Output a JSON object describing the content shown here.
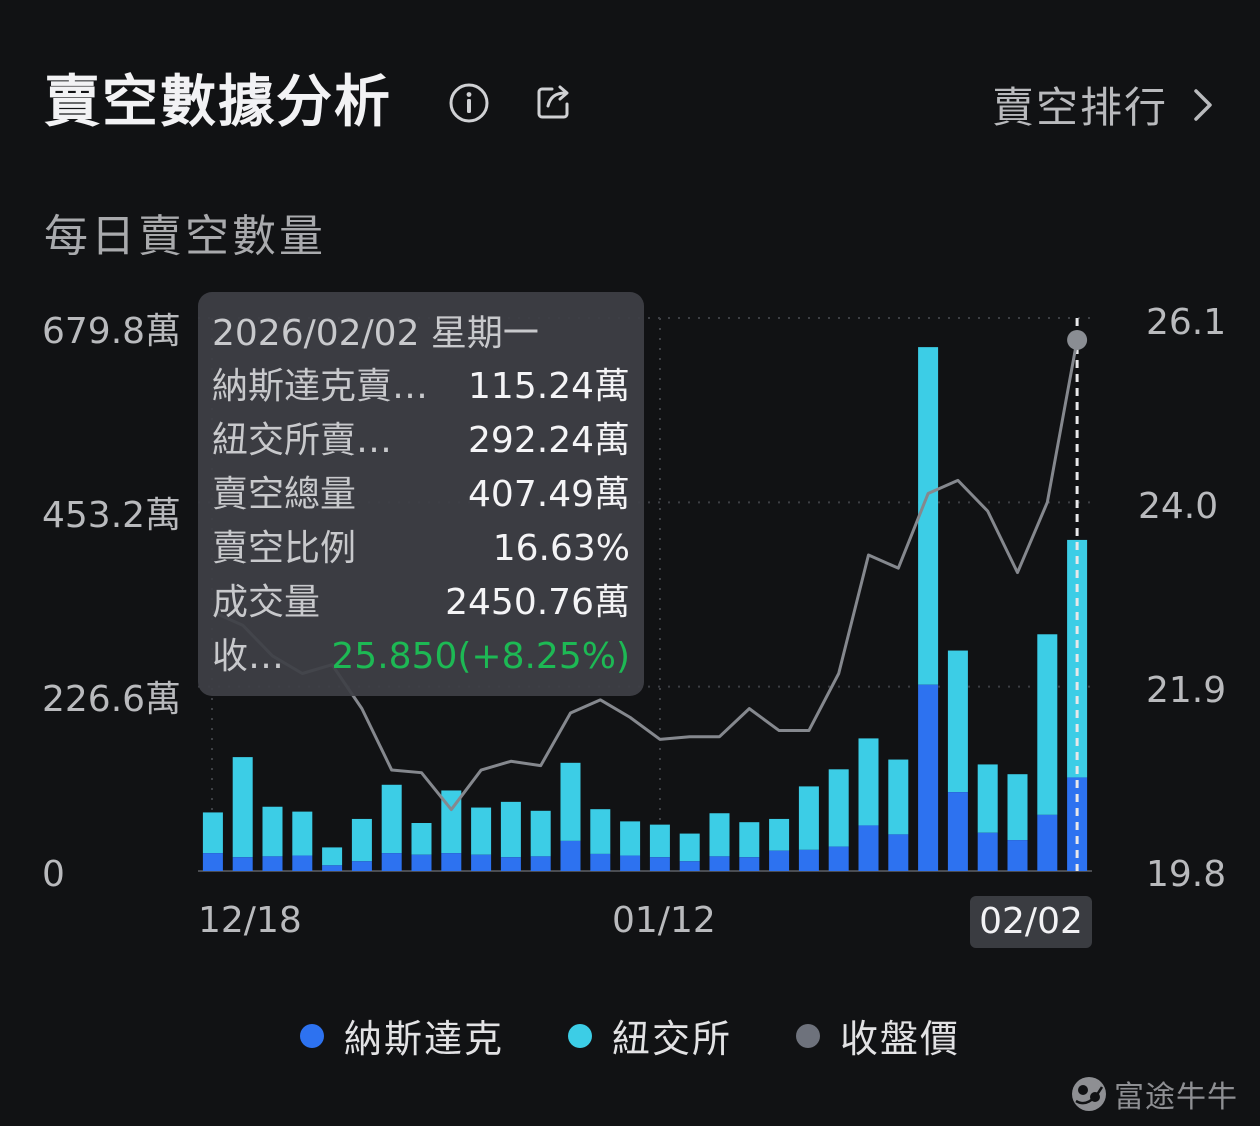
{
  "header": {
    "title": "賣空數據分析",
    "rank_label": "賣空排行"
  },
  "subtitle": "每日賣空數量",
  "tooltip": {
    "date": "2026/02/02 星期一",
    "rows": [
      {
        "label": "納斯達克賣…",
        "value": "115.24萬"
      },
      {
        "label": "紐交所賣…",
        "value": "292.24萬"
      },
      {
        "label": "賣空總量",
        "value": "407.49萬"
      },
      {
        "label": "賣空比例",
        "value": "16.63%"
      },
      {
        "label": "成交量",
        "value": "2450.76萬"
      },
      {
        "label": "收…",
        "value": "25.850(+8.25%)"
      }
    ]
  },
  "legend": [
    {
      "label": "納斯達克",
      "color": "#2d72f0"
    },
    {
      "label": "紐交所",
      "color": "#3ccde6"
    },
    {
      "label": "收盤價",
      "color": "#6e727c"
    }
  ],
  "watermark": "富途牛牛",
  "colors": {
    "nasdaq": "#2d72f0",
    "nyse": "#3ccde6",
    "close": "#85888e",
    "up": "#1db954"
  },
  "chart_data": {
    "type": "bar",
    "stacked": true,
    "y_left": {
      "ticks": [
        "679.8萬",
        "453.2萬",
        "226.6萬",
        "0"
      ],
      "range": [
        0,
        679.8
      ],
      "unit": "萬"
    },
    "y_right": {
      "ticks": [
        "26.1",
        "24.0",
        "21.9",
        "19.8"
      ],
      "range": [
        19.8,
        26.1
      ]
    },
    "x_tick_labels": [
      "12/18",
      "01/12",
      "02/02"
    ],
    "highlighted": "02/02",
    "series": [
      {
        "name": "納斯達克",
        "values": [
          22,
          17,
          18,
          19,
          7,
          12,
          22,
          20,
          22,
          20,
          17,
          18,
          37,
          21,
          19,
          17,
          12,
          18,
          17,
          25,
          26,
          30,
          56,
          45,
          229,
          97,
          47,
          38,
          69,
          115
        ]
      },
      {
        "name": "紐交所",
        "values": [
          50,
          123,
          61,
          54,
          22,
          52,
          84,
          39,
          77,
          58,
          68,
          56,
          96,
          55,
          42,
          40,
          34,
          53,
          43,
          39,
          78,
          95,
          107,
          92,
          415,
          174,
          84,
          81,
          222,
          292
        ]
      },
      {
        "name": "收盤價",
        "values": [
          22.75,
          22.6,
          22.25,
          22.05,
          22.15,
          21.65,
          20.95,
          20.92,
          20.5,
          20.95,
          21.05,
          21.0,
          21.6,
          21.75,
          21.55,
          21.3,
          21.33,
          21.33,
          21.65,
          21.4,
          21.4,
          22.05,
          23.4,
          23.25,
          24.1,
          24.25,
          23.9,
          23.2,
          24.0,
          25.85
        ]
      }
    ]
  }
}
